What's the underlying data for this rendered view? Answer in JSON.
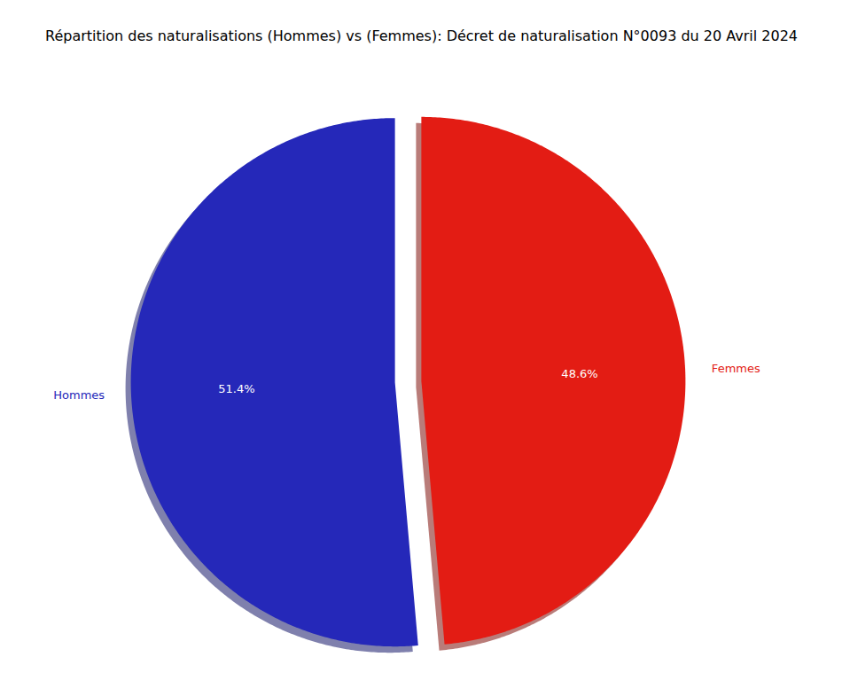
{
  "chart_data": {
    "type": "pie",
    "title": "Répartition des naturalisations (Hommes) vs (Femmes): Décret de naturalisation N°0093 du 20 Avril 2024",
    "categories": [
      "Hommes",
      "Femmes"
    ],
    "values": [
      51.4,
      48.6
    ],
    "value_labels": [
      "51.4%",
      "48.6%"
    ],
    "colors": [
      "#2528b9",
      "#e31c14"
    ],
    "data_labels": true
  }
}
